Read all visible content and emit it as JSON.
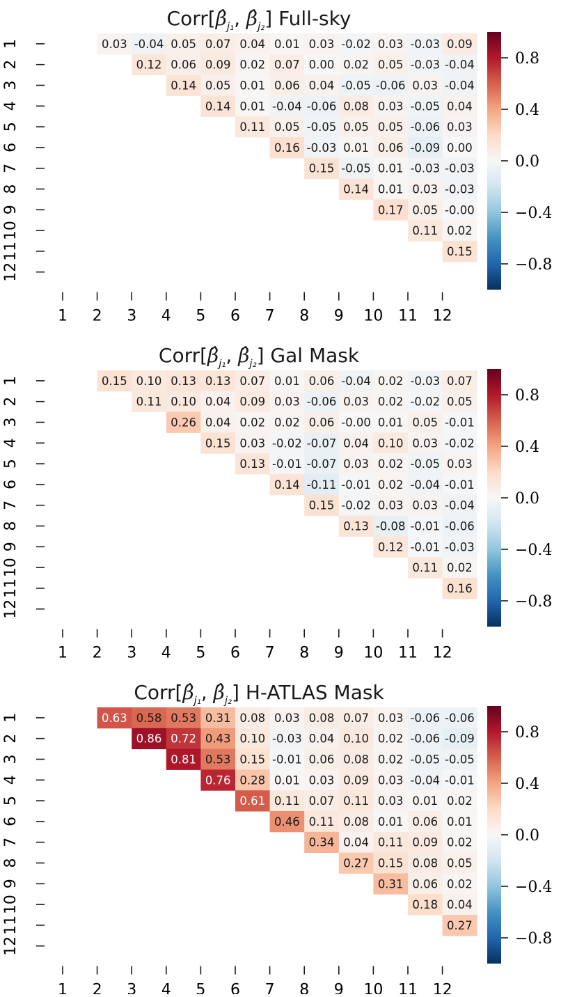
{
  "colorbar": {
    "ticks": [
      0.8,
      0.4,
      0.0,
      -0.4,
      -0.8
    ],
    "tick_labels": [
      "0.8",
      "0.4",
      "0.0",
      "−0.4",
      "−0.8"
    ],
    "range": [
      -1,
      1
    ],
    "colormap": "RdBu_r",
    "colors": {
      "low": "#053061",
      "mid": "#f7f7f7",
      "high": "#67001f"
    }
  },
  "chart_data": [
    {
      "type": "heatmap",
      "title_prefix": "Corr[",
      "title_math_1": "β̂",
      "title_sub_1": "j₁",
      "title_sep": ", ",
      "title_math_2": "β̂",
      "title_sub_2": "j₂",
      "title_suffix": "] Full-sky",
      "x_tick_labels": [
        "1",
        "2",
        "3",
        "4",
        "5",
        "6",
        "7",
        "8",
        "9",
        "10",
        "11",
        "12"
      ],
      "y_tick_labels": [
        "1",
        "2",
        "3",
        "4",
        "5",
        "6",
        "7",
        "8",
        "9",
        "10",
        "11",
        "12"
      ],
      "vmin": -1,
      "vmax": 1,
      "matrix": [
        [
          null,
          0.03,
          -0.04,
          0.05,
          0.07,
          0.04,
          0.01,
          0.03,
          -0.02,
          0.03,
          -0.03,
          0.09
        ],
        [
          null,
          null,
          0.12,
          0.06,
          0.09,
          0.02,
          0.07,
          0.0,
          0.02,
          0.05,
          -0.03,
          -0.04
        ],
        [
          null,
          null,
          null,
          0.14,
          0.05,
          0.01,
          0.06,
          0.04,
          -0.05,
          -0.06,
          0.03,
          -0.04
        ],
        [
          null,
          null,
          null,
          null,
          0.14,
          0.01,
          -0.04,
          -0.06,
          0.08,
          0.03,
          -0.05,
          0.04
        ],
        [
          null,
          null,
          null,
          null,
          null,
          0.11,
          0.05,
          -0.05,
          0.05,
          0.05,
          -0.06,
          0.03
        ],
        [
          null,
          null,
          null,
          null,
          null,
          null,
          0.16,
          -0.03,
          0.01,
          0.06,
          -0.09,
          0.0
        ],
        [
          null,
          null,
          null,
          null,
          null,
          null,
          null,
          0.15,
          -0.05,
          0.01,
          -0.03,
          -0.03
        ],
        [
          null,
          null,
          null,
          null,
          null,
          null,
          null,
          null,
          0.14,
          0.01,
          0.03,
          -0.03
        ],
        [
          null,
          null,
          null,
          null,
          null,
          null,
          null,
          null,
          null,
          0.17,
          0.05,
          -0.0
        ],
        [
          null,
          null,
          null,
          null,
          null,
          null,
          null,
          null,
          null,
          null,
          0.11,
          0.02
        ],
        [
          null,
          null,
          null,
          null,
          null,
          null,
          null,
          null,
          null,
          null,
          null,
          0.15
        ],
        [
          null,
          null,
          null,
          null,
          null,
          null,
          null,
          null,
          null,
          null,
          null,
          null
        ]
      ]
    },
    {
      "type": "heatmap",
      "title_prefix": "Corr[",
      "title_math_1": "β̂",
      "title_sub_1": "j₁",
      "title_sep": ", ",
      "title_math_2": "β̂",
      "title_sub_2": "j₂",
      "title_suffix": "] Gal Mask",
      "x_tick_labels": [
        "1",
        "2",
        "3",
        "4",
        "5",
        "6",
        "7",
        "8",
        "9",
        "10",
        "11",
        "12"
      ],
      "y_tick_labels": [
        "1",
        "2",
        "3",
        "4",
        "5",
        "6",
        "7",
        "8",
        "9",
        "10",
        "11",
        "12"
      ],
      "vmin": -1,
      "vmax": 1,
      "matrix": [
        [
          null,
          0.15,
          0.1,
          0.13,
          0.13,
          0.07,
          0.01,
          0.06,
          -0.04,
          0.02,
          -0.03,
          0.07
        ],
        [
          null,
          null,
          0.11,
          0.1,
          0.04,
          0.09,
          0.03,
          -0.06,
          0.03,
          0.02,
          -0.02,
          0.05
        ],
        [
          null,
          null,
          null,
          0.26,
          0.04,
          0.02,
          0.02,
          0.06,
          -0.0,
          0.01,
          0.05,
          -0.01
        ],
        [
          null,
          null,
          null,
          null,
          0.15,
          0.03,
          -0.02,
          -0.07,
          0.04,
          0.1,
          0.03,
          -0.02
        ],
        [
          null,
          null,
          null,
          null,
          null,
          0.13,
          -0.01,
          -0.07,
          0.03,
          0.02,
          -0.05,
          0.03
        ],
        [
          null,
          null,
          null,
          null,
          null,
          null,
          0.14,
          -0.11,
          -0.01,
          0.02,
          -0.04,
          -0.01
        ],
        [
          null,
          null,
          null,
          null,
          null,
          null,
          null,
          0.15,
          -0.02,
          0.03,
          0.03,
          -0.04
        ],
        [
          null,
          null,
          null,
          null,
          null,
          null,
          null,
          null,
          0.13,
          -0.08,
          -0.01,
          -0.06
        ],
        [
          null,
          null,
          null,
          null,
          null,
          null,
          null,
          null,
          null,
          0.12,
          -0.01,
          -0.03
        ],
        [
          null,
          null,
          null,
          null,
          null,
          null,
          null,
          null,
          null,
          null,
          0.11,
          0.02
        ],
        [
          null,
          null,
          null,
          null,
          null,
          null,
          null,
          null,
          null,
          null,
          null,
          0.16
        ],
        [
          null,
          null,
          null,
          null,
          null,
          null,
          null,
          null,
          null,
          null,
          null,
          null
        ]
      ]
    },
    {
      "type": "heatmap",
      "title_prefix": "Corr[",
      "title_math_1": "β̂",
      "title_sub_1": "j₁",
      "title_sep": ", ",
      "title_math_2": "β̂",
      "title_sub_2": "j₂",
      "title_suffix": "] H-ATLAS Mask",
      "x_tick_labels": [
        "1",
        "2",
        "3",
        "4",
        "5",
        "6",
        "7",
        "8",
        "9",
        "10",
        "11",
        "12"
      ],
      "y_tick_labels": [
        "1",
        "2",
        "3",
        "4",
        "5",
        "6",
        "7",
        "8",
        "9",
        "10",
        "11",
        "12"
      ],
      "vmin": -1,
      "vmax": 1,
      "matrix": [
        [
          null,
          0.63,
          0.58,
          0.53,
          0.31,
          0.08,
          0.03,
          0.08,
          0.07,
          0.03,
          -0.06,
          -0.06
        ],
        [
          null,
          null,
          0.86,
          0.72,
          0.43,
          0.1,
          -0.03,
          0.04,
          0.1,
          0.02,
          -0.06,
          -0.09
        ],
        [
          null,
          null,
          null,
          0.81,
          0.53,
          0.15,
          -0.01,
          0.06,
          0.08,
          0.02,
          -0.05,
          -0.05
        ],
        [
          null,
          null,
          null,
          null,
          0.76,
          0.28,
          0.01,
          0.03,
          0.09,
          0.03,
          -0.04,
          -0.01
        ],
        [
          null,
          null,
          null,
          null,
          null,
          0.61,
          0.11,
          0.07,
          0.11,
          0.03,
          0.01,
          0.02
        ],
        [
          null,
          null,
          null,
          null,
          null,
          null,
          0.46,
          0.11,
          0.08,
          0.01,
          0.06,
          0.01
        ],
        [
          null,
          null,
          null,
          null,
          null,
          null,
          null,
          0.34,
          0.04,
          0.11,
          0.09,
          0.02
        ],
        [
          null,
          null,
          null,
          null,
          null,
          null,
          null,
          null,
          0.27,
          0.15,
          0.08,
          0.05
        ],
        [
          null,
          null,
          null,
          null,
          null,
          null,
          null,
          null,
          null,
          0.31,
          0.06,
          0.02
        ],
        [
          null,
          null,
          null,
          null,
          null,
          null,
          null,
          null,
          null,
          null,
          0.18,
          0.04
        ],
        [
          null,
          null,
          null,
          null,
          null,
          null,
          null,
          null,
          null,
          null,
          null,
          0.27
        ],
        [
          null,
          null,
          null,
          null,
          null,
          null,
          null,
          null,
          null,
          null,
          null,
          null
        ]
      ]
    }
  ]
}
